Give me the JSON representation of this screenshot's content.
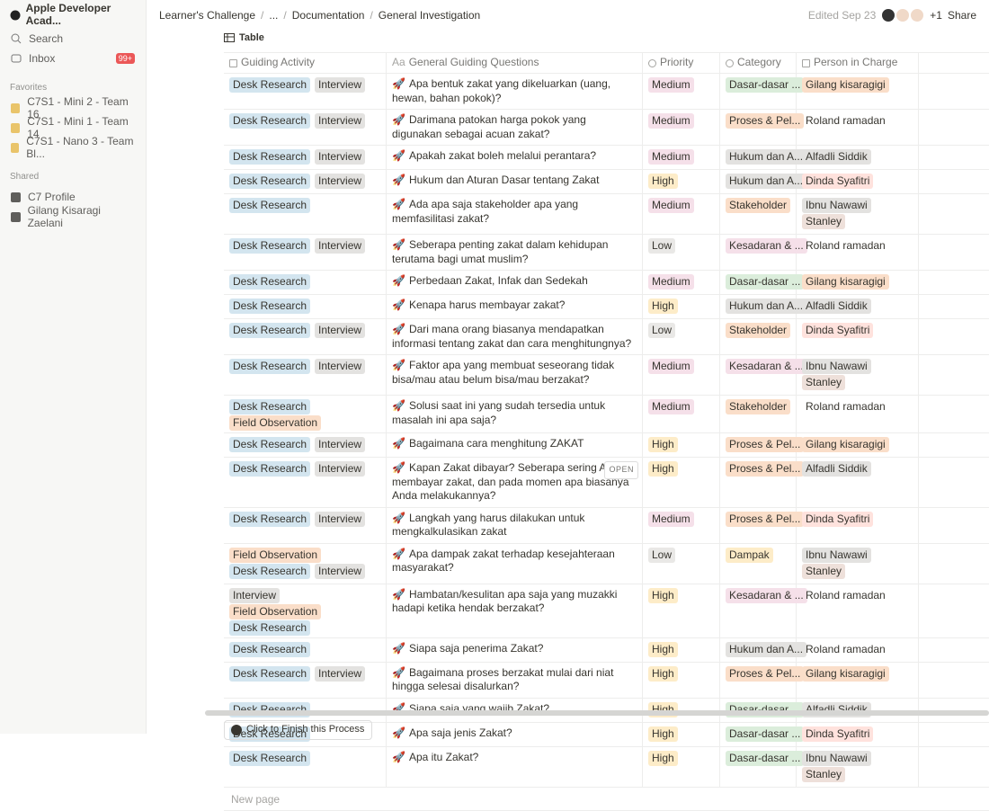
{
  "sidebar": {
    "workspace": "Apple Developer Acad...",
    "search": "Search",
    "inbox": "Inbox",
    "inbox_badge": "99+",
    "favorites_label": "Favorites",
    "favorites": [
      "C7S1 - Mini 2 - Team 16",
      "C7S1 - Mini 1 - Team 14",
      "C7S1 - Nano 3 - Team Bl..."
    ],
    "shared_label": "Shared",
    "shared": [
      "C7 Profile",
      "Gilang Kisaragi Zaelani"
    ]
  },
  "header": {
    "breadcrumb": [
      "Learner's Challenge",
      "...",
      "Documentation",
      "General Investigation"
    ],
    "separator": "/",
    "edited": "Edited Sep 23",
    "more_people": "+1",
    "share": "Share"
  },
  "view": "Table",
  "table": {
    "title_icon": "Aa",
    "question_icon": "🚀",
    "columns": [
      "Guiding Activity",
      "General Guiding Questions",
      "Priority",
      "Category",
      "Person in Charge"
    ],
    "rows": [
      {
        "activity": [
          "Desk Research",
          "Interview"
        ],
        "question": "Apa bentuk zakat yang dikeluarkan (uang, hewan, bahan pokok)?",
        "priority": "Medium",
        "category": "Dasar-dasar ...",
        "person": [
          "Gilang kisaragigi"
        ]
      },
      {
        "activity": [
          "Desk Research",
          "Interview"
        ],
        "question": "Darimana patokan harga pokok yang digunakan sebagai acuan zakat?",
        "priority": "Medium",
        "category": "Proses & Pel...",
        "person": [
          "Roland ramadan"
        ]
      },
      {
        "activity": [
          "Desk Research",
          "Interview"
        ],
        "question": "Apakah zakat boleh melalui perantara?",
        "priority": "Medium",
        "category": "Hukum dan A...",
        "person": [
          "Alfadli Siddik"
        ]
      },
      {
        "activity": [
          "Desk Research",
          "Interview"
        ],
        "question": "Hukum dan Aturan Dasar tentang Zakat",
        "priority": "High",
        "category": "Hukum dan A...",
        "person": [
          "Dinda Syafitri"
        ]
      },
      {
        "activity": [
          "Desk Research"
        ],
        "question": "Ada apa saja stakeholder apa yang memfasilitasi zakat?",
        "priority": "Medium",
        "category": "Stakeholder",
        "person": [
          "Ibnu Nawawi",
          "Stanley"
        ]
      },
      {
        "activity": [
          "Desk Research",
          "Interview"
        ],
        "question": "Seberapa penting zakat dalam kehidupan terutama bagi umat muslim?",
        "priority": "Low",
        "category": "Kesadaran & ...",
        "person": [
          "Roland ramadan"
        ]
      },
      {
        "activity": [
          "Desk Research"
        ],
        "question": "Perbedaan Zakat, Infak dan Sedekah",
        "priority": "Medium",
        "category": "Dasar-dasar ...",
        "person": [
          "Gilang kisaragigi"
        ]
      },
      {
        "activity": [
          "Desk Research"
        ],
        "question": "Kenapa harus membayar zakat?",
        "priority": "High",
        "category": "Hukum dan A...",
        "person": [
          "Alfadli Siddik"
        ]
      },
      {
        "activity": [
          "Desk Research",
          "Interview"
        ],
        "question": "Dari mana orang biasanya mendapatkan informasi tentang zakat dan cara menghitungnya?",
        "priority": "Low",
        "category": "Stakeholder",
        "person": [
          "Dinda Syafitri"
        ]
      },
      {
        "activity": [
          "Desk Research",
          "Interview"
        ],
        "question": "Faktor apa yang membuat seseorang tidak bisa/mau atau belum bisa/mau berzakat?",
        "priority": "Medium",
        "category": "Kesadaran & ...",
        "person": [
          "Ibnu Nawawi",
          "Stanley"
        ]
      },
      {
        "activity": [
          "Desk Research",
          "Field Observation"
        ],
        "question": "Solusi saat ini yang sudah tersedia untuk masalah ini apa saja?",
        "priority": "Medium",
        "category": "Stakeholder",
        "person": [
          "Roland ramadan"
        ]
      },
      {
        "activity": [
          "Desk Research",
          "Interview"
        ],
        "question": "Bagaimana cara menghitung ZAKAT",
        "priority": "High",
        "category": "Proses & Pel...",
        "person": [
          "Gilang kisaragigi"
        ]
      },
      {
        "activity": [
          "Desk Research",
          "Interview"
        ],
        "question": "Kapan Zakat dibayar? Seberapa sering Anda membayar zakat, dan pada momen apa biasanya Anda melakukannya?",
        "priority": "High",
        "category": "Proses & Pel...",
        "person": [
          "Alfadli Siddik"
        ]
      },
      {
        "activity": [
          "Desk Research",
          "Interview"
        ],
        "question": "Langkah yang harus dilakukan untuk mengkalkulasikan zakat",
        "priority": "Medium",
        "category": "Proses & Pel...",
        "person": [
          "Dinda Syafitri"
        ]
      },
      {
        "activity": [
          "Field Observation",
          "Desk Research",
          "Interview"
        ],
        "question": "Apa dampak zakat terhadap kesejahteraan masyarakat?",
        "priority": "Low",
        "category": "Dampak",
        "person": [
          "Ibnu Nawawi",
          "Stanley"
        ]
      },
      {
        "activity": [
          "Interview",
          "Field Observation",
          "Desk Research"
        ],
        "question": "Hambatan/kesulitan apa saja yang muzakki hadapi ketika hendak berzakat?",
        "priority": "High",
        "category": "Kesadaran & ...",
        "person": [
          "Roland ramadan"
        ]
      },
      {
        "activity": [
          "Desk Research"
        ],
        "question": "Siapa saja penerima Zakat?",
        "priority": "High",
        "category": "Hukum dan A...",
        "person": [
          "Roland ramadan"
        ]
      },
      {
        "activity": [
          "Desk Research",
          "Interview"
        ],
        "question": "Bagaimana proses berzakat mulai dari niat hingga selesai disalurkan?",
        "priority": "High",
        "category": "Proses & Pel...",
        "person": [
          "Gilang kisaragigi"
        ]
      },
      {
        "activity": [
          "Desk Research"
        ],
        "question": "Siapa saja yang wajib Zakat?",
        "priority": "High",
        "category": "Dasar-dasar ...",
        "person": [
          "Alfadli Siddik"
        ]
      },
      {
        "activity": [
          "Desk Research"
        ],
        "question": "Apa saja jenis Zakat?",
        "priority": "High",
        "category": "Dasar-dasar ...",
        "person": [
          "Dinda Syafitri"
        ]
      },
      {
        "activity": [
          "Desk Research"
        ],
        "question": "Apa itu Zakat?",
        "priority": "High",
        "category": "Dasar-dasar ...",
        "person": [
          "Ibnu Nawawi",
          "Stanley"
        ]
      }
    ],
    "hovered_row": 12,
    "open_label": "OPEN",
    "new_page": "New page",
    "colors": {
      "Desk Research": "#d3e5ef",
      "Interview": "#e3e2e0",
      "Field Observation": "#fadec9",
      "Medium": "#f5e0e9",
      "High": "#fdecc8",
      "Low": "#e9e8e6",
      "Dasar-dasar ...": "#dbeddb",
      "Proses & Pel...": "#fadec9",
      "Hukum dan A...": "#e3e2e0",
      "Stakeholder": "#fadec9",
      "Kesadaran & ...": "#f5e0e9",
      "Dampak": "#fdecc8",
      "Gilang kisaragigi": "#fadec9",
      "Roland ramadan": "transparent",
      "Alfadli Siddik": "#e3e2e0",
      "Dinda Syafitri": "#ffe2dd",
      "Ibnu Nawawi": "#e3e2e0",
      "Stanley": "#eee0da"
    }
  },
  "footer_button": "Click to Finish this Process"
}
